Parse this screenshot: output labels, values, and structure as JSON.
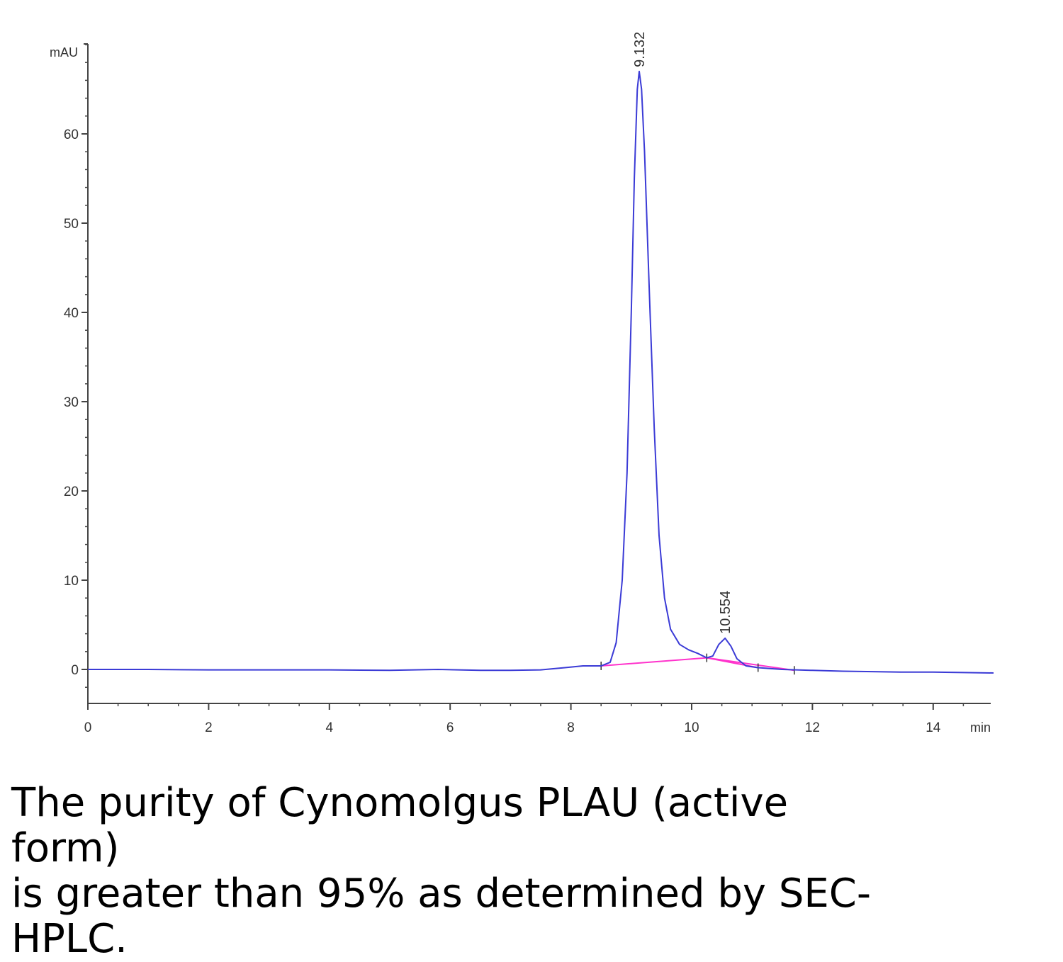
{
  "chart_data": {
    "type": "line",
    "title": "",
    "ylabel": "mAU",
    "xlabel": "min",
    "xlim": [
      0,
      15
    ],
    "ylim": [
      -4,
      70
    ],
    "xticks": [
      "0",
      "2",
      "4",
      "6",
      "8",
      "10",
      "12",
      "14"
    ],
    "yticks": [
      "0",
      "10",
      "20",
      "30",
      "40",
      "50",
      "60"
    ],
    "grid": false,
    "series_color": "#3b3bd6",
    "baseline_color": "#ff33cc",
    "peaks": [
      {
        "label": "9.132",
        "rt": 9.132,
        "height": 67
      },
      {
        "label": "10.554",
        "rt": 10.554,
        "height": 3.5
      }
    ],
    "series": [
      {
        "values": [
          [
            0.0,
            0.0
          ],
          [
            1.0,
            0.0
          ],
          [
            2.0,
            -0.05
          ],
          [
            3.0,
            -0.05
          ],
          [
            4.0,
            -0.05
          ],
          [
            5.0,
            -0.1
          ],
          [
            5.8,
            0.0
          ],
          [
            6.5,
            -0.1
          ],
          [
            7.0,
            -0.1
          ],
          [
            7.5,
            -0.05
          ],
          [
            7.9,
            0.2
          ],
          [
            8.2,
            0.4
          ],
          [
            8.5,
            0.4
          ],
          [
            8.65,
            0.8
          ],
          [
            8.75,
            3.0
          ],
          [
            8.85,
            10.0
          ],
          [
            8.93,
            22.0
          ],
          [
            9.0,
            40.0
          ],
          [
            9.05,
            55.0
          ],
          [
            9.1,
            65.0
          ],
          [
            9.132,
            67.0
          ],
          [
            9.17,
            65.0
          ],
          [
            9.22,
            58.0
          ],
          [
            9.3,
            42.0
          ],
          [
            9.38,
            27.0
          ],
          [
            9.46,
            15.0
          ],
          [
            9.55,
            8.0
          ],
          [
            9.65,
            4.5
          ],
          [
            9.8,
            2.8
          ],
          [
            9.95,
            2.2
          ],
          [
            10.1,
            1.8
          ],
          [
            10.25,
            1.3
          ],
          [
            10.35,
            1.5
          ],
          [
            10.45,
            2.8
          ],
          [
            10.554,
            3.5
          ],
          [
            10.65,
            2.6
          ],
          [
            10.75,
            1.2
          ],
          [
            10.9,
            0.4
          ],
          [
            11.1,
            0.2
          ],
          [
            11.5,
            0.0
          ],
          [
            12.0,
            -0.1
          ],
          [
            12.5,
            -0.2
          ],
          [
            13.0,
            -0.25
          ],
          [
            13.5,
            -0.3
          ],
          [
            14.0,
            -0.3
          ],
          [
            14.5,
            -0.35
          ],
          [
            15.0,
            -0.4
          ]
        ]
      }
    ],
    "baselines": [
      [
        [
          8.5,
          0.4
        ],
        [
          10.25,
          1.3
        ],
        [
          11.7,
          -0.1
        ]
      ],
      [
        [
          10.25,
          1.3
        ],
        [
          11.1,
          0.2
        ]
      ]
    ]
  },
  "caption": "The purity of Cynomolgus PLAU (active form)\nis greater than 95% as determined by SEC-\nHPLC."
}
